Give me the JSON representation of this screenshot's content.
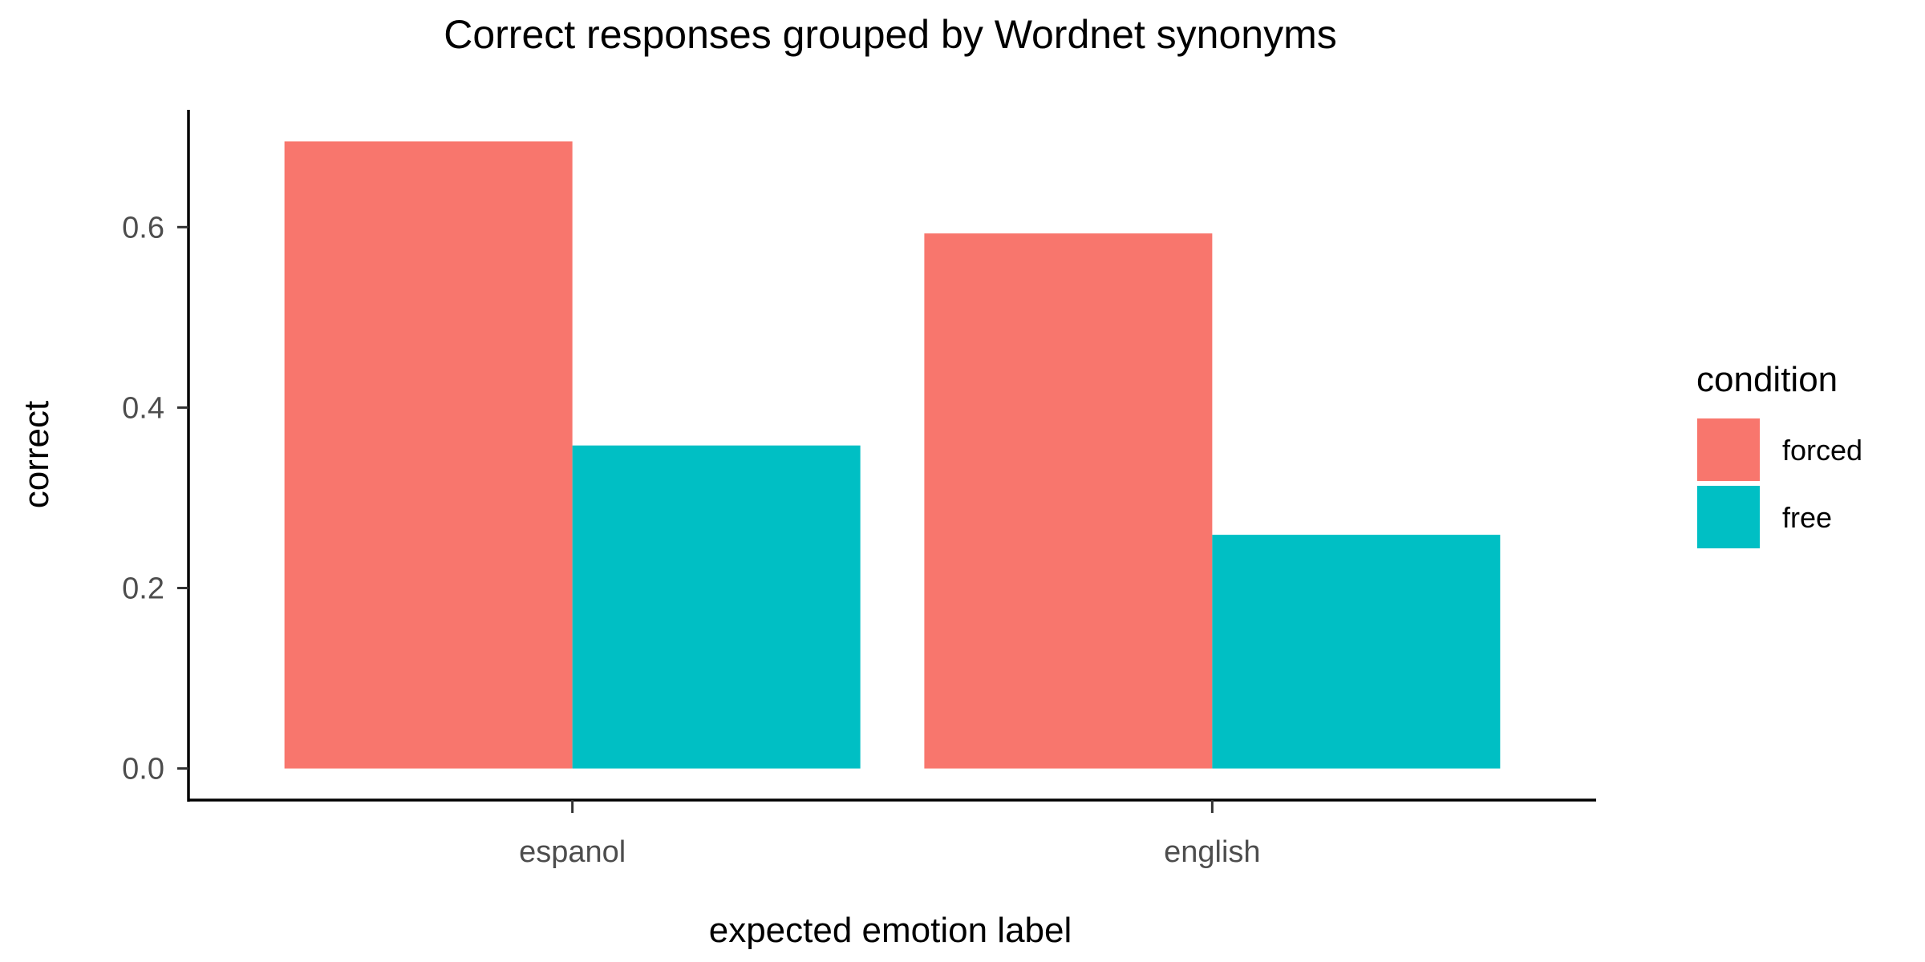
{
  "chart_data": {
    "type": "bar",
    "title": "Correct responses grouped by Wordnet synonyms",
    "xlabel": "expected emotion label",
    "ylabel": "correct",
    "categories": [
      "espanol",
      "english"
    ],
    "series": [
      {
        "name": "forced",
        "color": "#F8766D",
        "values": [
          0.695,
          0.593
        ]
      },
      {
        "name": "free",
        "color": "#00BFC4",
        "values": [
          0.358,
          0.259
        ]
      }
    ],
    "ylim": [
      -0.035,
      0.73
    ],
    "yticks": [
      0.0,
      0.2,
      0.4,
      0.6
    ],
    "ytick_labels": [
      "0.0",
      "0.2",
      "0.4",
      "0.6"
    ],
    "legend": {
      "title": "condition",
      "position": "right"
    },
    "grid": false
  }
}
